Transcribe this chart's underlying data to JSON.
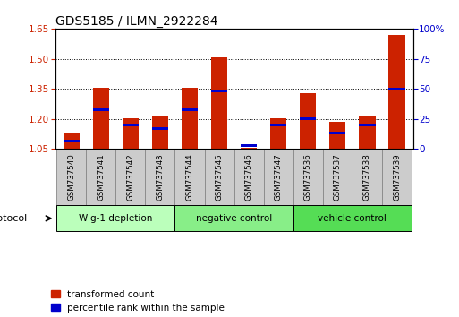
{
  "title": "GDS5185 / ILMN_2922284",
  "samples": [
    "GSM737540",
    "GSM737541",
    "GSM737542",
    "GSM737543",
    "GSM737544",
    "GSM737545",
    "GSM737546",
    "GSM737547",
    "GSM737536",
    "GSM737537",
    "GSM737538",
    "GSM737539"
  ],
  "transformed_count": [
    1.13,
    1.355,
    1.205,
    1.215,
    1.355,
    1.505,
    1.055,
    1.205,
    1.33,
    1.185,
    1.215,
    1.62
  ],
  "percentile_rank": [
    7,
    33,
    20,
    17,
    33,
    48,
    3,
    20,
    25,
    13,
    20,
    50
  ],
  "ylim_left": [
    1.05,
    1.65
  ],
  "ylim_right": [
    0,
    100
  ],
  "yticks_left": [
    1.05,
    1.2,
    1.35,
    1.5,
    1.65
  ],
  "yticks_right": [
    0,
    25,
    50,
    75,
    100
  ],
  "groups": [
    {
      "label": "Wig-1 depletion",
      "start": 0,
      "end": 3,
      "color": "#bbffbb"
    },
    {
      "label": "negative control",
      "start": 4,
      "end": 7,
      "color": "#88ee88"
    },
    {
      "label": "vehicle control",
      "start": 8,
      "end": 11,
      "color": "#55dd55"
    }
  ],
  "bar_color_red": "#cc2200",
  "bar_color_blue": "#0000cc",
  "base_value": 1.05,
  "protocol_label": "protocol",
  "legend_red": "transformed count",
  "legend_blue": "percentile rank within the sample",
  "bar_width": 0.55,
  "tick_label_color_left": "#cc2200",
  "tick_label_color_right": "#0000cc",
  "sample_box_color": "#cccccc",
  "sample_box_edge": "#888888"
}
